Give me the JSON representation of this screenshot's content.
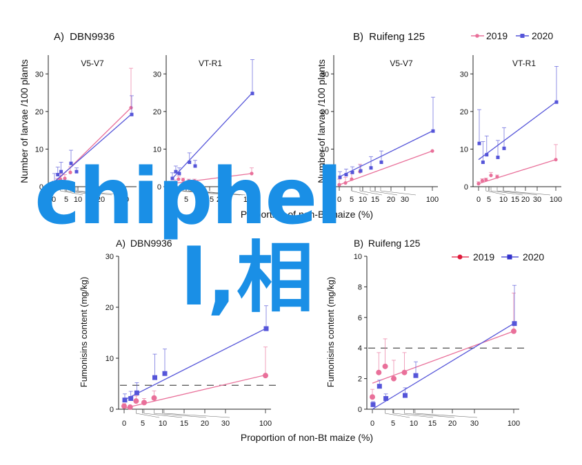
{
  "overlay": {
    "line1": "chiphel",
    "line2": "l,相"
  },
  "colors": {
    "y2019": "#e9709a",
    "y2020": "#5555d9",
    "y2019_bottom": "#e0508a",
    "overlay": "#1a8fe6"
  },
  "top_legend": {
    "y2019": "2019",
    "y2020": "2020"
  },
  "top_ylabel": "Number of larvae /100 plants",
  "top_xlabel": "Proportion of non-Bt maize (%)",
  "bottom_legend": {
    "y2019": "2019",
    "y2020": "2020"
  },
  "bottom_ylabel": "Fumonisins content (mg/kg)",
  "bottom_xlabel": "Proportion of non-Bt maize (%)",
  "chart_data": [
    {
      "type": "scatter",
      "id": "top-A-V5V7",
      "panel_label": "A)",
      "panel_title": "DBN9936",
      "subtitle": "V5-V7",
      "ylim": [
        0,
        35
      ],
      "yticks": [
        0,
        10,
        20,
        30
      ],
      "x": [
        0,
        1.5,
        3,
        5,
        7.5,
        10,
        100
      ],
      "xtick_labels": [
        "0",
        "5",
        "10",
        "15",
        "20",
        "100"
      ],
      "series": [
        {
          "name": "2019",
          "x": [
            0,
            1.5,
            3,
            5,
            7.5,
            100
          ],
          "values": [
            0.5,
            1.2,
            2.0,
            2.2,
            3.8,
            21.0
          ],
          "err_up": [
            1.0,
            1.0,
            1.5,
            1.0,
            1.5,
            10.5
          ],
          "fit": [
            [
              0,
              0.8
            ],
            [
              100,
              21.0
            ]
          ]
        },
        {
          "name": "2020",
          "x": [
            0,
            1.5,
            3,
            7.5,
            10,
            100
          ],
          "values": [
            1.0,
            3.2,
            4.0,
            6.2,
            4.0,
            19.2
          ],
          "err_up": [
            2.5,
            2.0,
            2.5,
            3.5,
            1.0,
            5.0
          ],
          "fit": [
            [
              0,
              1.2
            ],
            [
              100,
              19.2
            ]
          ]
        }
      ]
    },
    {
      "type": "scatter",
      "id": "top-A-VTR1",
      "subtitle": "VT-R1",
      "ylim": [
        0,
        35
      ],
      "yticks": [
        0,
        10,
        20,
        30
      ],
      "xtick_labels": [
        "5",
        "15",
        "20",
        "100"
      ],
      "series": [
        {
          "name": "2019",
          "x": [
            0,
            1.5,
            3,
            5,
            7.5,
            10,
            100
          ],
          "values": [
            0.3,
            0.8,
            2.0,
            1.8,
            1.5,
            1.5,
            3.5
          ],
          "err_up": [
            0.5,
            1.0,
            0.8,
            0.5,
            0.5,
            0.5,
            1.5
          ],
          "fit": [
            [
              0,
              0.8
            ],
            [
              100,
              3.5
            ]
          ]
        },
        {
          "name": "2020",
          "x": [
            0,
            1.5,
            3,
            7.5,
            10,
            100
          ],
          "values": [
            2.2,
            4.0,
            3.5,
            6.5,
            5.5,
            24.8
          ],
          "err_up": [
            1.5,
            1.5,
            1.5,
            2.5,
            1.5,
            9.0
          ],
          "fit": [
            [
              0,
              2.0
            ],
            [
              100,
              24.8
            ]
          ]
        }
      ]
    },
    {
      "type": "scatter",
      "id": "top-B-V5V7",
      "panel_label": "B)",
      "panel_title": "Ruifeng 125",
      "subtitle": "V5-V7",
      "ylim": [
        0,
        35
      ],
      "yticks": [
        0,
        10,
        20,
        30
      ],
      "xtick_labels": [
        "0",
        "5",
        "10",
        "15",
        "20",
        "30",
        "100"
      ],
      "series": [
        {
          "name": "2019",
          "x": [
            0,
            1.5,
            3,
            5,
            100
          ],
          "values": [
            0.5,
            1.0,
            2.0,
            4.0,
            9.5
          ],
          "err_up": [
            1.5,
            1.5,
            1.5,
            2.0,
            0
          ],
          "fit": [
            [
              0,
              0.5
            ],
            [
              100,
              9.5
            ]
          ]
        },
        {
          "name": "2020",
          "x": [
            0,
            1.5,
            3,
            5,
            7.5,
            10,
            100
          ],
          "values": [
            2.5,
            3.2,
            3.8,
            4.2,
            5.0,
            6.5,
            14.8
          ],
          "err_up": [
            1.5,
            1.5,
            1.5,
            1.5,
            3.0,
            3.0,
            9.0
          ],
          "fit": [
            [
              0,
              2.6
            ],
            [
              100,
              14.8
            ]
          ]
        }
      ]
    },
    {
      "type": "scatter",
      "id": "top-B-VTR1",
      "subtitle": "VT-R1",
      "ylim": [
        0,
        35
      ],
      "yticks": [
        0,
        10,
        20,
        30
      ],
      "xtick_labels": [
        "0",
        "5",
        "10",
        "15",
        "20",
        "30",
        "100"
      ],
      "series": [
        {
          "name": "2019",
          "x": [
            0,
            1.5,
            3,
            5,
            7.5,
            100
          ],
          "values": [
            0.8,
            1.6,
            1.8,
            3.0,
            2.6,
            7.2
          ],
          "err_up": [
            0.5,
            0.5,
            0.5,
            0.8,
            0.5,
            4.0
          ],
          "fit": [
            [
              0,
              0.8
            ],
            [
              100,
              7.2
            ]
          ]
        },
        {
          "name": "2020",
          "x": [
            0,
            1.5,
            3,
            7.5,
            10,
            100
          ],
          "values": [
            11.5,
            6.5,
            8.5,
            7.8,
            10.2,
            22.5
          ],
          "err_up": [
            9.0,
            5.5,
            5.0,
            4.5,
            5.5,
            9.5
          ],
          "fit": [
            [
              0,
              7.2
            ],
            [
              100,
              22.5
            ]
          ]
        }
      ]
    },
    {
      "type": "scatter",
      "id": "bottom-A",
      "panel_label": "A)",
      "panel_title": "DBN9936",
      "ylim": [
        0,
        30
      ],
      "yticks": [
        0,
        10,
        20,
        30
      ],
      "reference_line": 4.7,
      "xtick_labels": [
        "0",
        "5",
        "10",
        "15",
        "20",
        "30",
        "100"
      ],
      "series": [
        {
          "name": "2019",
          "x": [
            0,
            1.5,
            3,
            5,
            7.5,
            100
          ],
          "values": [
            0.6,
            0.4,
            1.6,
            1.3,
            2.2,
            6.6
          ],
          "err_up": [
            0.5,
            0.3,
            1.0,
            0.8,
            1.4,
            5.6
          ],
          "fit": [
            [
              0,
              0.2
            ],
            [
              100,
              6.7
            ]
          ]
        },
        {
          "name": "2020",
          "x": [
            0,
            1.5,
            3,
            7.5,
            10,
            100
          ],
          "values": [
            1.8,
            2.1,
            3.2,
            6.2,
            7.0,
            15.8
          ],
          "err_up": [
            1.2,
            1.4,
            2.0,
            4.6,
            4.8,
            4.5
          ],
          "fit": [
            [
              0,
              1.8
            ],
            [
              100,
              15.8
            ]
          ]
        }
      ]
    },
    {
      "type": "scatter",
      "id": "bottom-B",
      "panel_label": "B)",
      "panel_title": "Ruifeng 125",
      "ylim": [
        0,
        10
      ],
      "yticks": [
        0,
        2,
        4,
        6,
        8,
        10
      ],
      "reference_line": 4.0,
      "xtick_labels": [
        "0",
        "5",
        "10",
        "15",
        "20",
        "30",
        "100"
      ],
      "series": [
        {
          "name": "2019",
          "x": [
            0,
            1.5,
            3,
            5,
            7.5,
            100
          ],
          "values": [
            0.8,
            2.4,
            2.8,
            2.0,
            2.4,
            5.1
          ],
          "err_up": [
            0.5,
            1.3,
            1.8,
            1.2,
            1.3,
            2.5
          ],
          "fit": [
            [
              0,
              1.7
            ],
            [
              100,
              5.1
            ]
          ]
        },
        {
          "name": "2020",
          "x": [
            0,
            1.5,
            3,
            7.5,
            10,
            100
          ],
          "values": [
            0.3,
            1.5,
            0.7,
            0.9,
            2.2,
            5.6
          ],
          "err_up": [
            0.2,
            0.4,
            0.3,
            0.5,
            0.9,
            2.5
          ],
          "fit": [
            [
              0,
              0.0
            ],
            [
              100,
              5.6
            ]
          ]
        }
      ]
    }
  ]
}
